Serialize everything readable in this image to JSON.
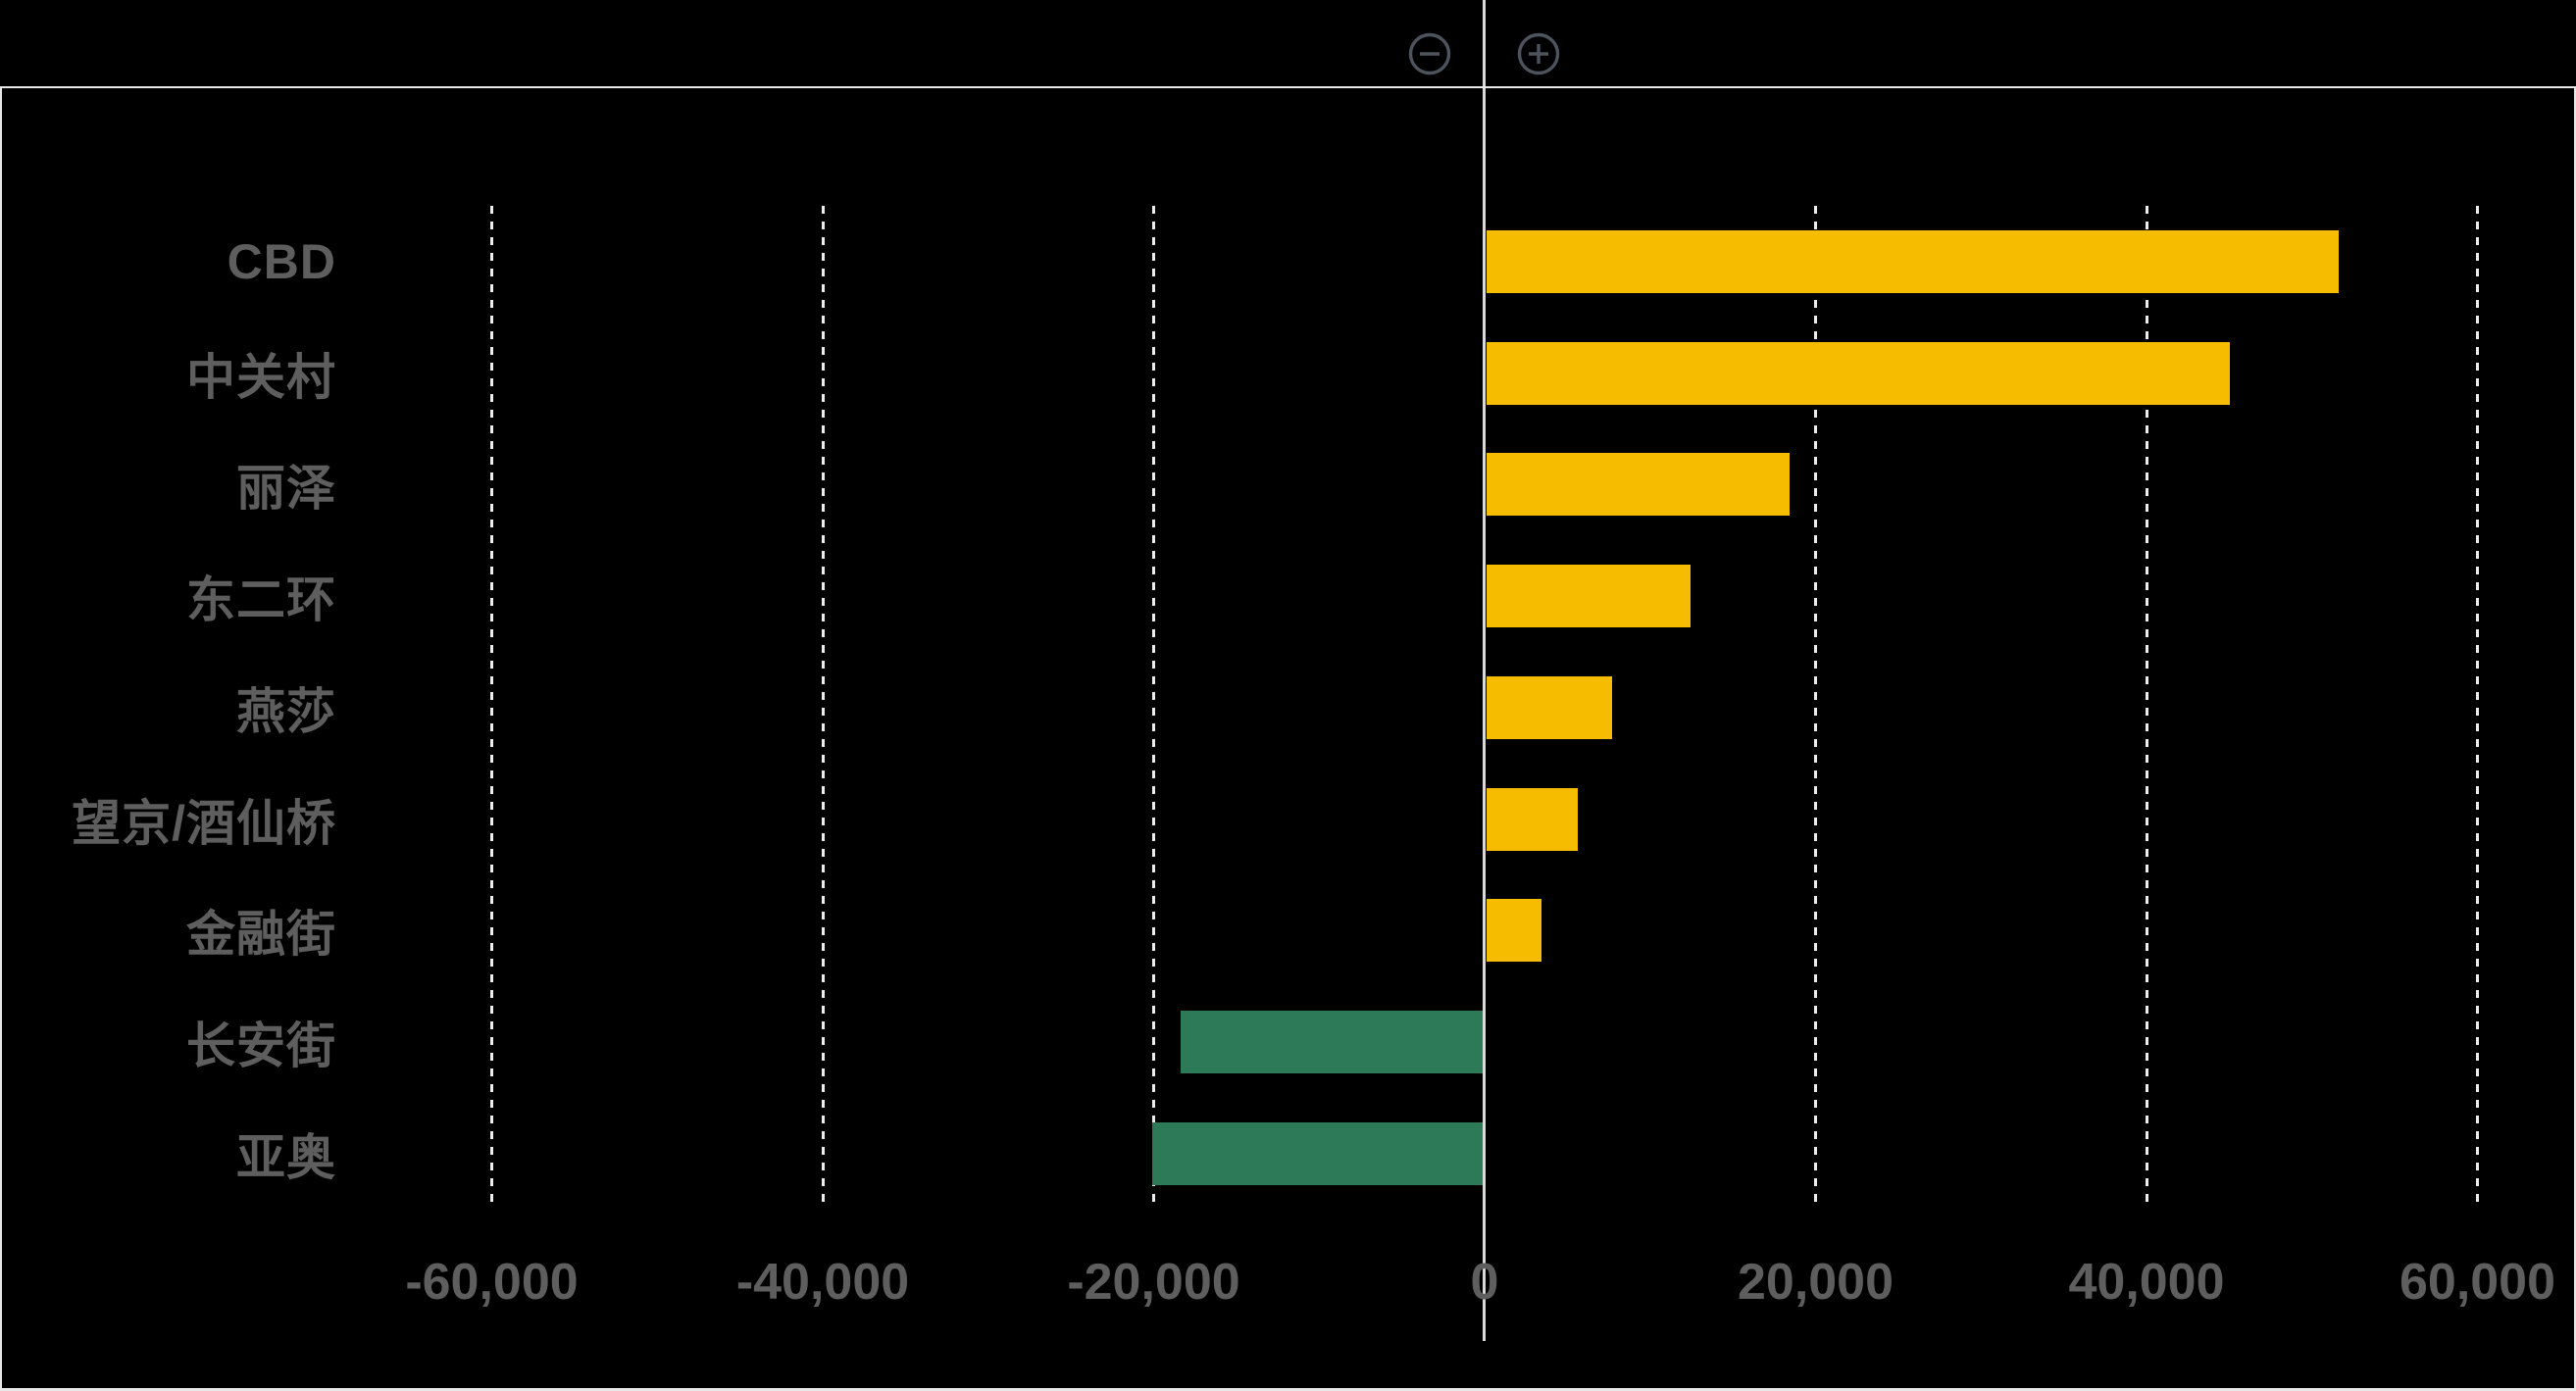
{
  "toolbar": {
    "zoom_out_icon": "minus-circle-icon",
    "zoom_in_icon": "plus-circle-icon",
    "icon_color": "#4d545e"
  },
  "chart_data": {
    "type": "bar",
    "orientation": "horizontal",
    "title": "",
    "xlabel": "",
    "ylabel": "",
    "categories": [
      "CBD",
      "中关村",
      "丽泽",
      "东二环",
      "燕莎",
      "望京/酒仙桥",
      "金融街",
      "长安街",
      "亚奥"
    ],
    "values": [
      51500,
      44900,
      18300,
      12300,
      7600,
      5500,
      3300,
      -18300,
      -20000
    ],
    "x_ticks": [
      {
        "label": "-60,000",
        "value": -60000
      },
      {
        "label": "-40,000",
        "value": -40000
      },
      {
        "label": "-20,000",
        "value": -20000
      },
      {
        "label": "0",
        "value": 0
      },
      {
        "label": "20,000",
        "value": 20000
      },
      {
        "label": "40,000",
        "value": 40000
      },
      {
        "label": "60,000",
        "value": 60000
      }
    ],
    "xlim": [
      -89700,
      65900
    ],
    "grid": "dashed-vertical",
    "legend": "none",
    "colors": {
      "positive": "#f5bc00",
      "negative": "#2c7a58",
      "label_text": "#5e5e5e",
      "gridline": "#ededed",
      "zero_line": "#d9d9d6",
      "frame": "#e8e8e8",
      "background": "#000000"
    }
  }
}
